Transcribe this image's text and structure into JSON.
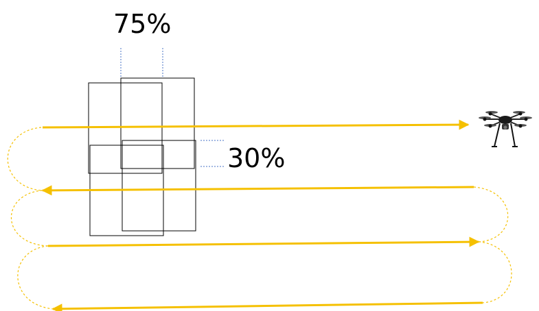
{
  "labels": {
    "forward_overlap": "75%",
    "side_overlap": "30%"
  },
  "colors": {
    "flight_path": "#F5C000",
    "guide_lines": "#4472C4",
    "frames": "#000000"
  },
  "icons": {
    "aircraft": "drone-icon",
    "direction": "arrowhead-icon"
  }
}
